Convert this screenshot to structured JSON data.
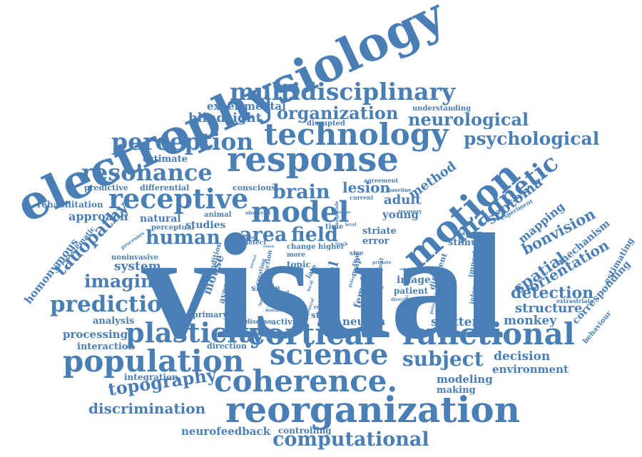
{
  "color": "#4a7fb5",
  "words": {
    "visual": "visual",
    "electrophysiology": "electrophysiology",
    "multidisciplinary": "multidisciplinary",
    "organization": "organization",
    "neurological": "neurological",
    "technology": "technology",
    "psychological": "psychological",
    "perception": "perception",
    "response": "response",
    "resonance": "resonance",
    "receptive": "receptive",
    "brain": "brain",
    "model": "model",
    "motion": "motion",
    "magnetic": "magnetic",
    "scotoma": "scotoma",
    "human": "human",
    "area": "area",
    "field": "field",
    "imaging": "imaging",
    "prediction": "prediction",
    "plasticity": "plasticity",
    "cortical": "cortical",
    "functional": "functional",
    "population": "population",
    "science": "science",
    "subject": "subject",
    "coherence": "coherence.",
    "reorganization": "reorganization",
    "computational": "computational",
    "topography": "topography",
    "discrimination": "discrimination",
    "neurofeedback": "neurofeedback",
    "controlling": "controlling",
    "tauopathy": "tauopathy",
    "homonymous": "homonymous",
    "systematic": "systematic",
    "spatial": "spatial",
    "orientation": "orientation",
    "detection": "detection",
    "structure": "structure",
    "bonvision": "bonvision",
    "mechanism": "mechanism",
    "mapping": "mapping",
    "corresponding": "corresponding",
    "estimating": "estimating",
    "behaviour": "behaviour",
    "monkey": "monkey",
    "decision": "decision",
    "environment": "environment",
    "modeling": "modeling",
    "making": "making",
    "scatter": "scatter",
    "neuron": "neuron",
    "stage": "stage",
    "processing": "processing",
    "interaction": "interaction",
    "integration": "integration",
    "analysis": "analysis",
    "approach": "approach",
    "rehabilitation": "rehabilitation",
    "predictive": "predictive",
    "differential": "differential",
    "estimate": "estimate",
    "experimental": "experimental",
    "blindsight": "blindsight",
    "disrupted": "disrupted",
    "understanding": "understanding",
    "method": "method",
    "lesion": "lesion",
    "adult": "adult",
    "young": "young",
    "current": "current",
    "agreement": "agreement",
    "baseline": "baseline",
    "recovery": "recovery",
    "experiment": "experiment",
    "natural": "natural",
    "studies": "studies",
    "animal": "animal",
    "conscious": "conscious",
    "perceptual": "perceptual",
    "striate": "striate",
    "error": "error",
    "stimulus": "stimulus",
    "pattern": "pattern",
    "system": "system",
    "noninvasive": "noninvasive",
    "processes": "processes",
    "mouse": "mouse",
    "average": "average",
    "condition": "condition",
    "topic": "topic",
    "single": "single",
    "male": "male",
    "source": "source",
    "mutant": "mutant",
    "disease": "disease",
    "activity": "activity",
    "primary": "primary",
    "direction": "direction",
    "female": "female",
    "neural": "neural",
    "patient": "patient",
    "image": "image",
    "different": "different",
    "important": "important",
    "information": "information",
    "extrastriate": "extrastriate",
    "potential": "potential",
    "change": "change",
    "higher": "higher",
    "time": "time",
    "level": "level",
    "defect": "defect",
    "observed": "observed",
    "size": "size",
    "map": "map",
    "real": "real",
    "late": "late",
    "primate": "primate",
    "signal": "signal",
    "more": "more",
    "creating": "creating",
    "function": "function",
    "vision": "vision",
    "result": "result",
    "general": "general",
    "closed": "closed",
    "normal": "normal",
    "amplitude": "amplitude",
    "persist": "persist",
    "local": "local",
    "gold": "gold",
    "prior": "prior",
    "months": "months",
    "residual": "residual",
    "intrinsic": "intrinsic",
    "directly": "directly",
    "other": "other",
    "track": "track",
    "damage": "damage",
    "period": "period"
  }
}
